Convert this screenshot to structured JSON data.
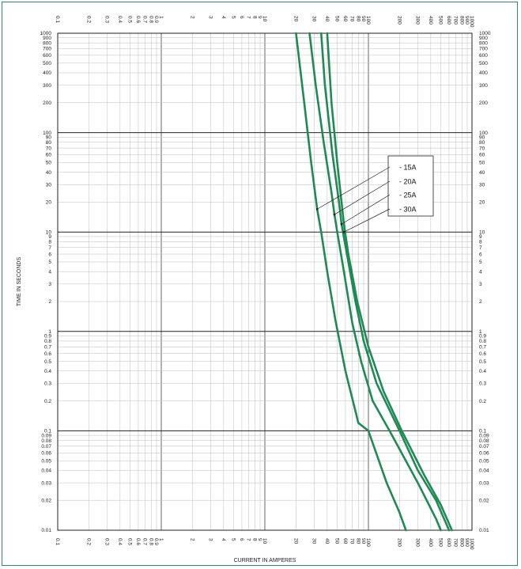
{
  "chart_data": {
    "type": "line",
    "title": "",
    "xlabel": "CURRENT IN AMPERES",
    "ylabel": "TIME IN SECONDS",
    "x_scale": "log",
    "y_scale": "log",
    "xlim": [
      0.1,
      1000
    ],
    "ylim": [
      0.01,
      1000
    ],
    "grid": true,
    "legend_position": "right-middle",
    "line_color": "#1f8a55",
    "x_tick_labels": [
      "0.1",
      "0.2",
      "0.3",
      "0.4",
      "0.5",
      "0.6",
      "0.7",
      "0.8",
      "0.9",
      "1",
      "2",
      "3",
      "4",
      "5",
      "6",
      "7",
      "8",
      "9",
      "10",
      "20",
      "30",
      "40",
      "50",
      "60",
      "70",
      "80",
      "90",
      "100",
      "200",
      "300",
      "400",
      "500",
      "600",
      "700",
      "800",
      "900",
      "1000"
    ],
    "x_tick_values": [
      0.1,
      0.2,
      0.3,
      0.4,
      0.5,
      0.6,
      0.7,
      0.8,
      0.9,
      1,
      2,
      3,
      4,
      5,
      6,
      7,
      8,
      9,
      10,
      20,
      30,
      40,
      50,
      60,
      70,
      80,
      90,
      100,
      200,
      300,
      400,
      500,
      600,
      700,
      800,
      900,
      1000
    ],
    "y_tick_labels": [
      "0.01",
      "0.02",
      "0.03",
      "0.04",
      "0.05",
      "0.06",
      "0.07",
      "0.08",
      "0.09",
      "0.1",
      "0.2",
      "0.3",
      "0.4",
      "0.5",
      "0.6",
      "0.7",
      "0.8",
      "0.9",
      "1",
      "2",
      "3",
      "4",
      "5",
      "6",
      "7",
      "8",
      "9",
      "10",
      "20",
      "30",
      "40",
      "50",
      "60",
      "70",
      "80",
      "90",
      "100",
      "200",
      "300",
      "400",
      "500",
      "600",
      "700",
      "800",
      "900",
      "1000"
    ],
    "y_tick_values": [
      0.01,
      0.02,
      0.03,
      0.04,
      0.05,
      0.06,
      0.07,
      0.08,
      0.09,
      0.1,
      0.2,
      0.3,
      0.4,
      0.5,
      0.6,
      0.7,
      0.8,
      0.9,
      1,
      2,
      3,
      4,
      5,
      6,
      7,
      8,
      9,
      10,
      20,
      30,
      40,
      50,
      60,
      70,
      80,
      90,
      100,
      200,
      300,
      400,
      500,
      600,
      700,
      800,
      900,
      1000
    ],
    "series": [
      {
        "name": "15A",
        "label_anchor": [
          32,
          17
        ],
        "points": [
          [
            20,
            1000
          ],
          [
            24,
            200
          ],
          [
            28,
            50
          ],
          [
            32,
            17
          ],
          [
            35,
            10
          ],
          [
            40,
            4
          ],
          [
            48,
            1.3
          ],
          [
            60,
            0.4
          ],
          [
            80,
            0.12
          ],
          [
            100,
            0.1
          ],
          [
            150,
            0.03
          ],
          [
            200,
            0.015
          ],
          [
            230,
            0.01
          ]
        ]
      },
      {
        "name": "20A",
        "label_anchor": [
          47,
          15
        ],
        "points": [
          [
            27,
            1000
          ],
          [
            31,
            300
          ],
          [
            37,
            80
          ],
          [
            44,
            25
          ],
          [
            47,
            15
          ],
          [
            50,
            10
          ],
          [
            58,
            4
          ],
          [
            70,
            1.2
          ],
          [
            85,
            0.5
          ],
          [
            110,
            0.2
          ],
          [
            160,
            0.1
          ],
          [
            300,
            0.03
          ],
          [
            450,
            0.013
          ],
          [
            500,
            0.01
          ]
        ]
      },
      {
        "name": "25A",
        "label_anchor": [
          55,
          12
        ],
        "points": [
          [
            35,
            1000
          ],
          [
            38,
            300
          ],
          [
            45,
            60
          ],
          [
            52,
            20
          ],
          [
            55,
            12
          ],
          [
            62,
            6
          ],
          [
            75,
            2
          ],
          [
            90,
            0.8
          ],
          [
            120,
            0.3
          ],
          [
            200,
            0.1
          ],
          [
            300,
            0.04
          ],
          [
            450,
            0.02
          ],
          [
            600,
            0.01
          ]
        ]
      },
      {
        "name": "30A",
        "label_anchor": [
          58,
          10
        ],
        "points": [
          [
            40,
            1000
          ],
          [
            44,
            200
          ],
          [
            50,
            50
          ],
          [
            58,
            12
          ],
          [
            64,
            6
          ],
          [
            78,
            2
          ],
          [
            100,
            0.7
          ],
          [
            140,
            0.25
          ],
          [
            210,
            0.1
          ],
          [
            350,
            0.035
          ],
          [
            500,
            0.018
          ],
          [
            640,
            0.01
          ]
        ]
      }
    ]
  }
}
